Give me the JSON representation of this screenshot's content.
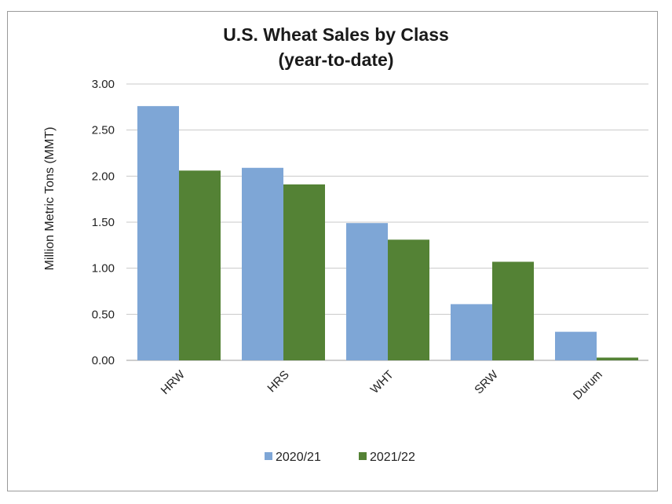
{
  "chart_data": {
    "type": "bar",
    "title_lines": [
      "U.S. Wheat Sales by Class",
      "(year-to-date)"
    ],
    "ylabel": "Million Metric Tons (MMT)",
    "xlabel": "",
    "categories": [
      "HRW",
      "HRS",
      "WHT",
      "SRW",
      "Durum"
    ],
    "series": [
      {
        "name": "2020/21",
        "color": "#7ea6d6",
        "values": [
          2.76,
          2.09,
          1.49,
          0.61,
          0.31
        ]
      },
      {
        "name": "2021/22",
        "color": "#548235",
        "values": [
          2.06,
          1.91,
          1.31,
          1.07,
          0.03
        ]
      }
    ],
    "ylim": [
      0,
      3
    ],
    "yticks": [
      "0.00",
      "0.50",
      "1.00",
      "1.50",
      "2.00",
      "2.50",
      "3.00"
    ],
    "grid": true,
    "legend_position": "bottom"
  }
}
